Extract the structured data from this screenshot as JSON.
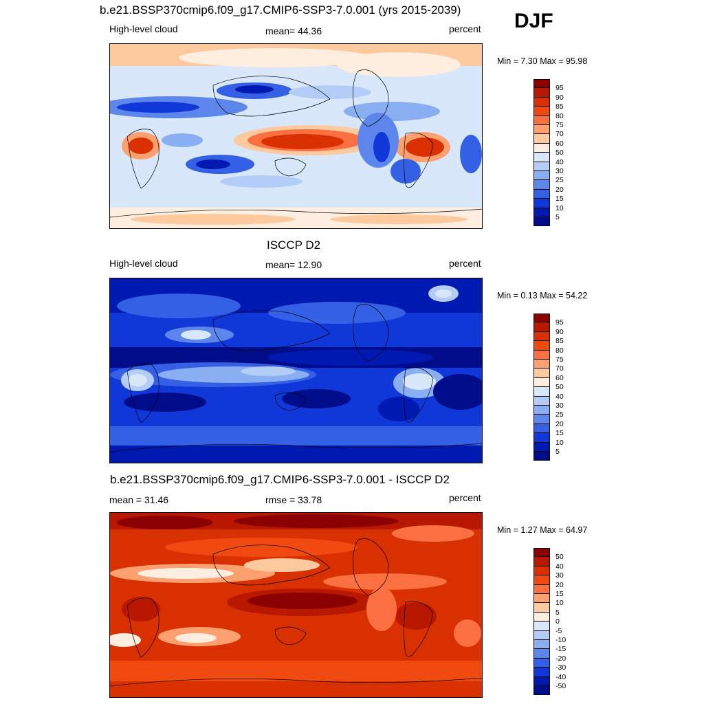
{
  "season": "DJF",
  "panels": [
    {
      "title": "b.e21.BSSP370cmip6.f09_g17.CMIP6-SSP3-7.0.001 (yrs 2015-2039)",
      "left_label": "High-level cloud",
      "center_label": "mean=  44.36",
      "right_label": "percent",
      "minmax_label": "Min =   7.30 Max =  95.98",
      "colorbar_ticks": [
        "95",
        "90",
        "85",
        "80",
        "75",
        "70",
        "60",
        "50",
        "40",
        "30",
        "25",
        "20",
        "15",
        "10",
        "5"
      ]
    },
    {
      "title": "ISCCP D2",
      "left_label": "High-level cloud",
      "center_label": "mean=  12.90",
      "right_label": "percent",
      "minmax_label": "Min =   0.13 Max =  54.22",
      "colorbar_ticks": [
        "95",
        "90",
        "85",
        "80",
        "75",
        "70",
        "60",
        "50",
        "40",
        "30",
        "25",
        "20",
        "15",
        "10",
        "5"
      ]
    },
    {
      "title": "b.e21.BSSP370cmip6.f09_g17.CMIP6-SSP3-7.0.001 - ISCCP D2",
      "left_label": "mean =  31.46",
      "center_label": "rmse =  33.78",
      "right_label": "percent",
      "minmax_label": "Min =   1.27 Max =  64.97",
      "colorbar_ticks": [
        "50",
        "40",
        "30",
        "20",
        "15",
        "10",
        "5",
        "0",
        "-5",
        "-10",
        "-15",
        "-20",
        "-30",
        "-40",
        "-50"
      ]
    }
  ],
  "colors": {
    "colorbar_top_to_bottom": [
      "#8b0000",
      "#b81800",
      "#d83000",
      "#f04a10",
      "#fa7040",
      "#fca070",
      "#fdcaa0",
      "#fdeee0",
      "#d8e8fa",
      "#b4cdf7",
      "#8aaef2",
      "#5d86ec",
      "#3460e6",
      "#1038d8",
      "#0019b0",
      "#000d8a"
    ]
  }
}
